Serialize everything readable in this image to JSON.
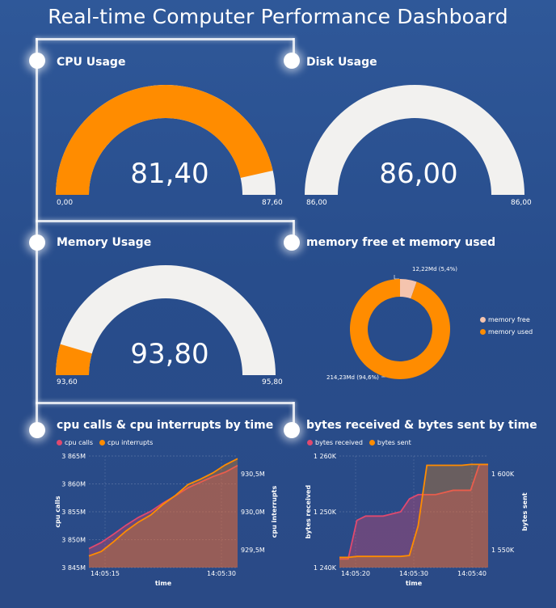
{
  "dashboard_title": "Real-time Computer Performance Dashboard",
  "colors": {
    "orange": "#ff8c00",
    "track": "#f2f1ef",
    "pink": "#e0496e",
    "peach": "#f5c4ae"
  },
  "chart_data": [
    {
      "type": "gauge",
      "title": "CPU Usage",
      "value": 81.4,
      "min": 0.0,
      "max": 87.6,
      "value_label": "81,40",
      "min_label": "0,00",
      "max_label": "87,60"
    },
    {
      "type": "gauge",
      "title": "Disk Usage",
      "value": 86.0,
      "min": 86.0,
      "max": 86.0,
      "fill_fraction": 0,
      "value_label": "86,00",
      "min_label": "86,00",
      "max_label": "86,00"
    },
    {
      "type": "gauge",
      "title": "Memory Usage",
      "value": 93.8,
      "min": 93.6,
      "max": 95.8,
      "value_label": "93,80",
      "min_label": "93,60",
      "max_label": "95,80"
    },
    {
      "type": "pie",
      "title": "memory free et memory used",
      "slices": [
        {
          "name": "memory free",
          "value": 12.22,
          "label": "12,22Md (5,4%)",
          "color": "#f5c4ae"
        },
        {
          "name": "memory used",
          "value": 214.23,
          "label": "214,23Md (94,6%)",
          "color": "#ff8c00"
        }
      ]
    },
    {
      "type": "area",
      "title": "cpu calls & cpu interrupts by time",
      "xlabel": "time",
      "ylabel": "cpu calls",
      "y2label": "cpu interrupts",
      "x_ticks": [
        "14:05:15",
        "14:05:30"
      ],
      "y_ticks": [
        "3 865M",
        "3 860M",
        "3 855M",
        "3 850M",
        "3 845M"
      ],
      "y2_ticks": [
        "930,5M",
        "930,0M",
        "929,5M"
      ],
      "x": [
        0,
        1,
        2,
        3,
        4,
        5,
        6,
        7,
        8,
        9,
        10,
        11,
        12
      ],
      "ylim": [
        3845,
        3865
      ],
      "y2lim": [
        929.4,
        930.65
      ],
      "series": [
        {
          "name": "cpu calls",
          "color": "#e0496e",
          "axis": "left",
          "values": [
            3848.4,
            3849.5,
            3851.0,
            3852.6,
            3854.0,
            3855.1,
            3856.6,
            3857.9,
            3859.3,
            3860.3,
            3861.3,
            3862.1,
            3863.3
          ]
        },
        {
          "name": "cpu interrupts",
          "color": "#ff8c00",
          "axis": "right",
          "values": [
            929.53,
            929.58,
            929.69,
            929.81,
            929.91,
            929.99,
            930.11,
            930.21,
            930.33,
            930.39,
            930.46,
            930.55,
            930.62
          ]
        }
      ]
    },
    {
      "type": "area",
      "title": "bytes received & bytes sent by time",
      "xlabel": "time",
      "ylabel": "bytes received",
      "y2label": "bytes sent",
      "x_ticks": [
        "14:05:20",
        "14:05:30",
        "14:05:40"
      ],
      "y_ticks": [
        "1 260K",
        "1 250K",
        "1 240K"
      ],
      "y2_ticks": [
        "1 600K",
        "1 550K"
      ],
      "x": [
        0,
        1,
        2,
        3,
        4,
        5,
        6,
        7,
        8,
        9,
        10,
        11,
        12,
        13,
        14,
        15,
        16,
        17
      ],
      "ylim": [
        1240,
        1266
      ],
      "y2lim": [
        1535,
        1655
      ],
      "series": [
        {
          "name": "bytes received",
          "color": "#e0496e",
          "axis": "left",
          "values": [
            1242,
            1242,
            1251,
            1252,
            1252,
            1252,
            1252.5,
            1253,
            1256,
            1257,
            1257,
            1257,
            1257.5,
            1258,
            1258,
            1258,
            1264,
            1264
          ]
        },
        {
          "name": "bytes sent",
          "color": "#ff8c00",
          "axis": "right",
          "values": [
            1546,
            1546,
            1547,
            1547,
            1547,
            1547,
            1547,
            1547,
            1548,
            1580,
            1645,
            1645,
            1645,
            1645,
            1645,
            1646,
            1646,
            1646
          ]
        }
      ]
    }
  ]
}
